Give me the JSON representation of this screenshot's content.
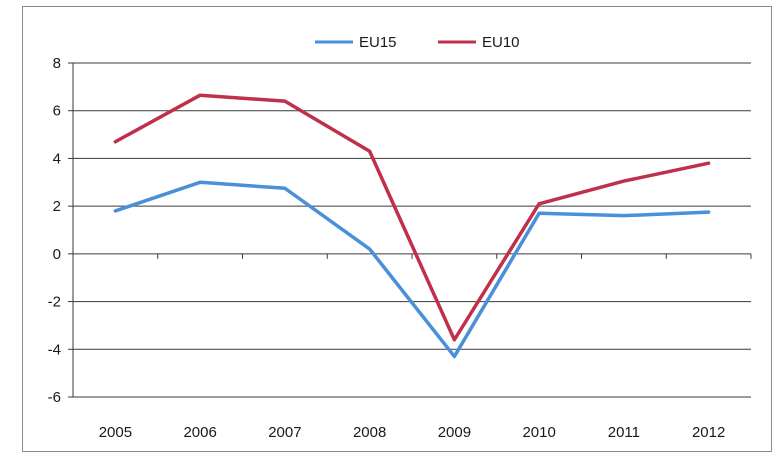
{
  "chart_data": {
    "type": "line",
    "x": [
      "2005",
      "2006",
      "2007",
      "2008",
      "2009",
      "2010",
      "2011",
      "2012"
    ],
    "series": [
      {
        "name": "EU15",
        "color": "#4a90d9",
        "values": [
          1.8,
          3.0,
          2.75,
          0.2,
          -4.3,
          1.7,
          1.6,
          1.75
        ]
      },
      {
        "name": "EU10",
        "color": "#c0304a",
        "values": [
          4.7,
          6.65,
          6.4,
          4.3,
          -3.6,
          2.1,
          3.05,
          3.8
        ]
      }
    ],
    "ylim": [
      -6,
      8
    ],
    "yticks": [
      8,
      6,
      4,
      2,
      0,
      -2,
      -4,
      -6
    ],
    "xlabel": "",
    "ylabel": "",
    "grid": true,
    "legend": "top-center"
  }
}
